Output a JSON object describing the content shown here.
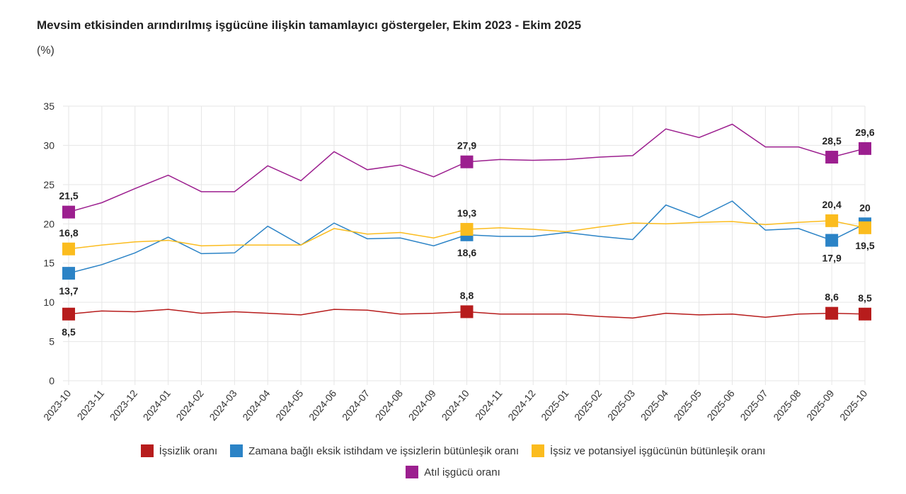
{
  "title": "Mevsim etkisinden arındırılmış işgücüne ilişkin tamamlayıcı göstergeler, Ekim 2023 - Ekim 2025",
  "unit": "(%)",
  "chart_data": {
    "type": "line",
    "title": "Mevsim etkisinden arındırılmış işgücüne ilişkin tamamlayıcı göstergeler, Ekim 2023 - Ekim 2025",
    "ylabel": "(%)",
    "ylim": [
      0,
      35
    ],
    "yticks": [
      0,
      5,
      10,
      15,
      20,
      25,
      30,
      35
    ],
    "grid": true,
    "legend_placement": "bottom",
    "categories": [
      "2023-10",
      "2023-11",
      "2023-12",
      "2024-01",
      "2024-02",
      "2024-03",
      "2024-04",
      "2024-05",
      "2024-06",
      "2024-07",
      "2024-08",
      "2024-09",
      "2024-10",
      "2024-11",
      "2024-12",
      "2025-01",
      "2025-02",
      "2025-03",
      "2025-04",
      "2025-05",
      "2025-06",
      "2025-07",
      "2025-08",
      "2025-09",
      "2025-10"
    ],
    "labeled_points": [
      "2023-10",
      "2024-10",
      "2025-09",
      "2025-10"
    ],
    "series": [
      {
        "name": "İşsizlik oranı",
        "color": "#b71c1c",
        "values": [
          8.5,
          8.9,
          8.8,
          9.1,
          8.6,
          8.8,
          8.6,
          8.4,
          9.1,
          9.0,
          8.5,
          8.6,
          8.8,
          8.5,
          8.5,
          8.5,
          8.2,
          8.0,
          8.6,
          8.4,
          8.5,
          8.1,
          8.5,
          8.6,
          8.5
        ]
      },
      {
        "name": "Zamana bağlı eksik istihdam ve işsizlerin bütünleşik oranı",
        "color": "#2b83c6",
        "values": [
          13.7,
          14.8,
          16.3,
          18.3,
          16.2,
          16.3,
          19.7,
          17.3,
          20.1,
          18.1,
          18.2,
          17.2,
          18.6,
          18.4,
          18.4,
          18.9,
          18.4,
          18.0,
          22.4,
          20.8,
          22.9,
          19.2,
          19.4,
          17.9,
          20.0
        ]
      },
      {
        "name": "İşsiz ve potansiyel işgücünün bütünleşik oranı",
        "color": "#fbbc1e",
        "values": [
          16.8,
          17.3,
          17.7,
          17.9,
          17.2,
          17.3,
          17.3,
          17.3,
          19.4,
          18.7,
          18.9,
          18.2,
          19.3,
          19.5,
          19.3,
          19.0,
          19.6,
          20.1,
          20.0,
          20.2,
          20.3,
          19.9,
          20.2,
          20.4,
          19.5
        ]
      },
      {
        "name": "Atıl işgücü oranı",
        "color": "#9c1f8f",
        "values": [
          21.5,
          22.7,
          24.5,
          26.2,
          24.1,
          24.1,
          27.4,
          25.5,
          29.2,
          26.9,
          27.5,
          26.0,
          27.9,
          28.2,
          28.1,
          28.2,
          28.5,
          28.7,
          32.1,
          31.0,
          32.7,
          29.8,
          29.8,
          28.5,
          29.6
        ]
      }
    ]
  }
}
